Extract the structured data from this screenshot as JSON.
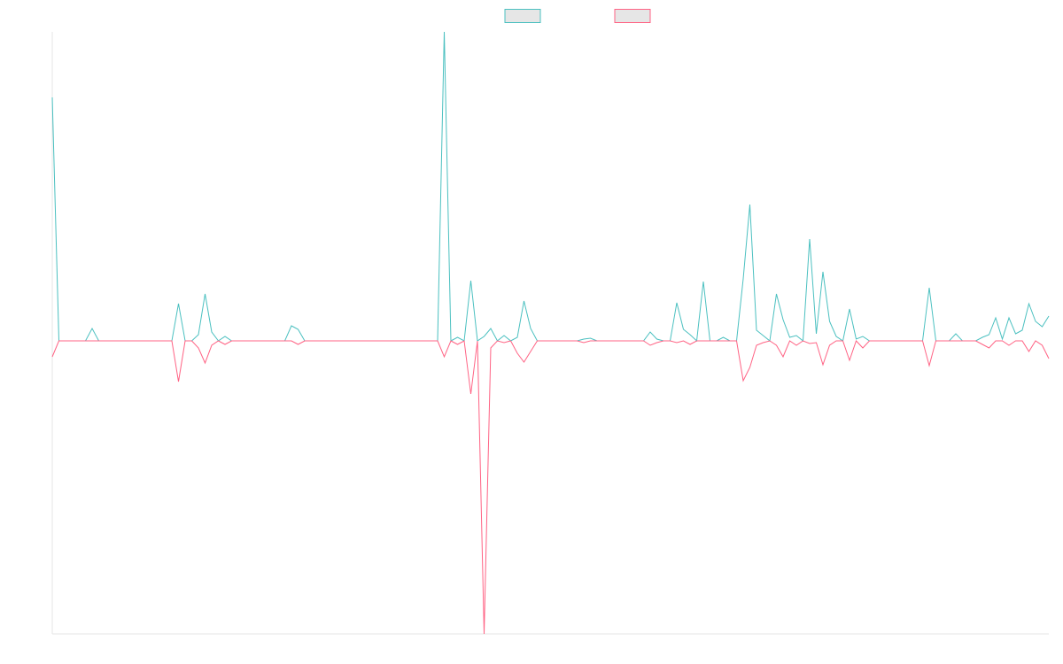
{
  "chart_data": {
    "type": "line",
    "categories": [
      null,
      null,
      null,
      null,
      null,
      null,
      null,
      null,
      null,
      null,
      null,
      null,
      null,
      null,
      null,
      null,
      null,
      null,
      null,
      null,
      null,
      null,
      null,
      null,
      null,
      null,
      null,
      null,
      null,
      null,
      null,
      null,
      null,
      null,
      null,
      null,
      null,
      null,
      null,
      null,
      null,
      null,
      null,
      null,
      null,
      null,
      null,
      null,
      null,
      null,
      null,
      null,
      null,
      null,
      null,
      null,
      null,
      null,
      null,
      null,
      null,
      null,
      null,
      null,
      null,
      null,
      null,
      null,
      null,
      null,
      null,
      null,
      null,
      null,
      null,
      null,
      null,
      null,
      null,
      null,
      null,
      null,
      null,
      null,
      null,
      null,
      null,
      null,
      null,
      null,
      null,
      null,
      null,
      null,
      null,
      null,
      null,
      null,
      null,
      null,
      null,
      null,
      null,
      null,
      null,
      null,
      null,
      null,
      null,
      null,
      null,
      null,
      null,
      null,
      null,
      null,
      null,
      null,
      null,
      null,
      null,
      null,
      null,
      null,
      null,
      null,
      null,
      null,
      null,
      null,
      null,
      null,
      null,
      null,
      null,
      null,
      null,
      null,
      null,
      null,
      null,
      null,
      null,
      null,
      null,
      null,
      null,
      null,
      null,
      null,
      null
    ],
    "series": [
      {
        "color": "#4bc0c0",
        "values": [
          275,
          0,
          0,
          0,
          0,
          0,
          14,
          0,
          0,
          0,
          0,
          0,
          0,
          0,
          0,
          0,
          0,
          0,
          0,
          42,
          0,
          0,
          7,
          53,
          10,
          0,
          5,
          0,
          0,
          0,
          0,
          0,
          0,
          0,
          0,
          0,
          17,
          13,
          0,
          0,
          0,
          0,
          0,
          0,
          0,
          0,
          0,
          0,
          0,
          0,
          0,
          0,
          0,
          0,
          0,
          0,
          0,
          0,
          0,
          349,
          0,
          4,
          0,
          68,
          0,
          5,
          14,
          0,
          6,
          0,
          4,
          45,
          14,
          0,
          0,
          0,
          0,
          0,
          0,
          0,
          2,
          3,
          0,
          0,
          0,
          0,
          0,
          0,
          0,
          0,
          10,
          2,
          0,
          0,
          43,
          13,
          7,
          0,
          67,
          0,
          0,
          4,
          0,
          0,
          70,
          154,
          12,
          6,
          0,
          53,
          24,
          4,
          6,
          0,
          115,
          8,
          78,
          22,
          5,
          0,
          36,
          2,
          5,
          0,
          0,
          0,
          0,
          0,
          0,
          0,
          0,
          0,
          60,
          0,
          0,
          0,
          8,
          0,
          0,
          0,
          4,
          7,
          26,
          2,
          26,
          8,
          12,
          42,
          22,
          16,
          28
        ]
      },
      {
        "color": "#ff6384",
        "values": [
          -18,
          0,
          0,
          0,
          0,
          0,
          0,
          0,
          0,
          0,
          0,
          0,
          0,
          0,
          0,
          0,
          0,
          0,
          0,
          -46,
          0,
          0,
          -8,
          -25,
          -5,
          0,
          -4,
          0,
          0,
          0,
          0,
          0,
          0,
          0,
          0,
          0,
          0,
          -4,
          0,
          0,
          0,
          0,
          0,
          0,
          0,
          0,
          0,
          0,
          0,
          0,
          0,
          0,
          0,
          0,
          0,
          0,
          0,
          0,
          0,
          -18,
          0,
          -4,
          0,
          -60,
          0,
          -331,
          -8,
          0,
          -2,
          0,
          -14,
          -24,
          -12,
          0,
          0,
          0,
          0,
          0,
          0,
          0,
          -2,
          0,
          0,
          0,
          0,
          0,
          0,
          0,
          0,
          0,
          -5,
          -2,
          0,
          0,
          -2,
          0,
          -4,
          0,
          0,
          0,
          0,
          0,
          0,
          0,
          -45,
          -30,
          -5,
          -2,
          0,
          -5,
          -18,
          0,
          -5,
          0,
          -3,
          -2,
          -27,
          -5,
          0,
          0,
          -22,
          0,
          -8,
          0,
          0,
          0,
          0,
          0,
          0,
          0,
          0,
          0,
          -28,
          0,
          0,
          0,
          0,
          0,
          0,
          0,
          -4,
          -8,
          0,
          0,
          -5,
          0,
          0,
          -12,
          0,
          -5,
          -20
        ]
      }
    ],
    "ylim": [
      -331,
      349
    ],
    "legend": "top"
  }
}
